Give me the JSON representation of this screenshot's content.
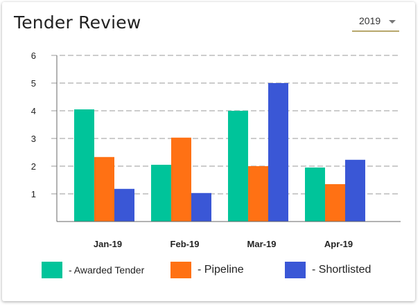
{
  "header": {
    "title": "Tender Review"
  },
  "year_select": {
    "value": "2019"
  },
  "colors": {
    "awarded": "#00c49a",
    "pipeline": "#ff7114",
    "shortlisted": "#3a57d6",
    "grid": "#999999",
    "axis": "#666666"
  },
  "icons": {
    "dropdown": "chevron-down-icon"
  },
  "chart_data": {
    "type": "bar",
    "title": "Tender Review",
    "categories": [
      "Jan-19",
      "Feb-19",
      "Mar-19",
      "Apr-19"
    ],
    "series": [
      {
        "name": "- Awarded Tender",
        "color": "#00c49a",
        "values": [
          4.05,
          2.05,
          4.0,
          1.95
        ]
      },
      {
        "name": "- Pipeline",
        "color": "#ff7114",
        "values": [
          2.33,
          3.03,
          2.0,
          1.35
        ]
      },
      {
        "name": "- Shortlisted",
        "color": "#3a57d6",
        "values": [
          1.18,
          1.03,
          5.0,
          2.23
        ]
      }
    ],
    "ylim": [
      0,
      6
    ],
    "yticks": [
      "1",
      "2",
      "3",
      "4",
      "5",
      "6"
    ],
    "grid": true,
    "legend_position": "bottom"
  }
}
